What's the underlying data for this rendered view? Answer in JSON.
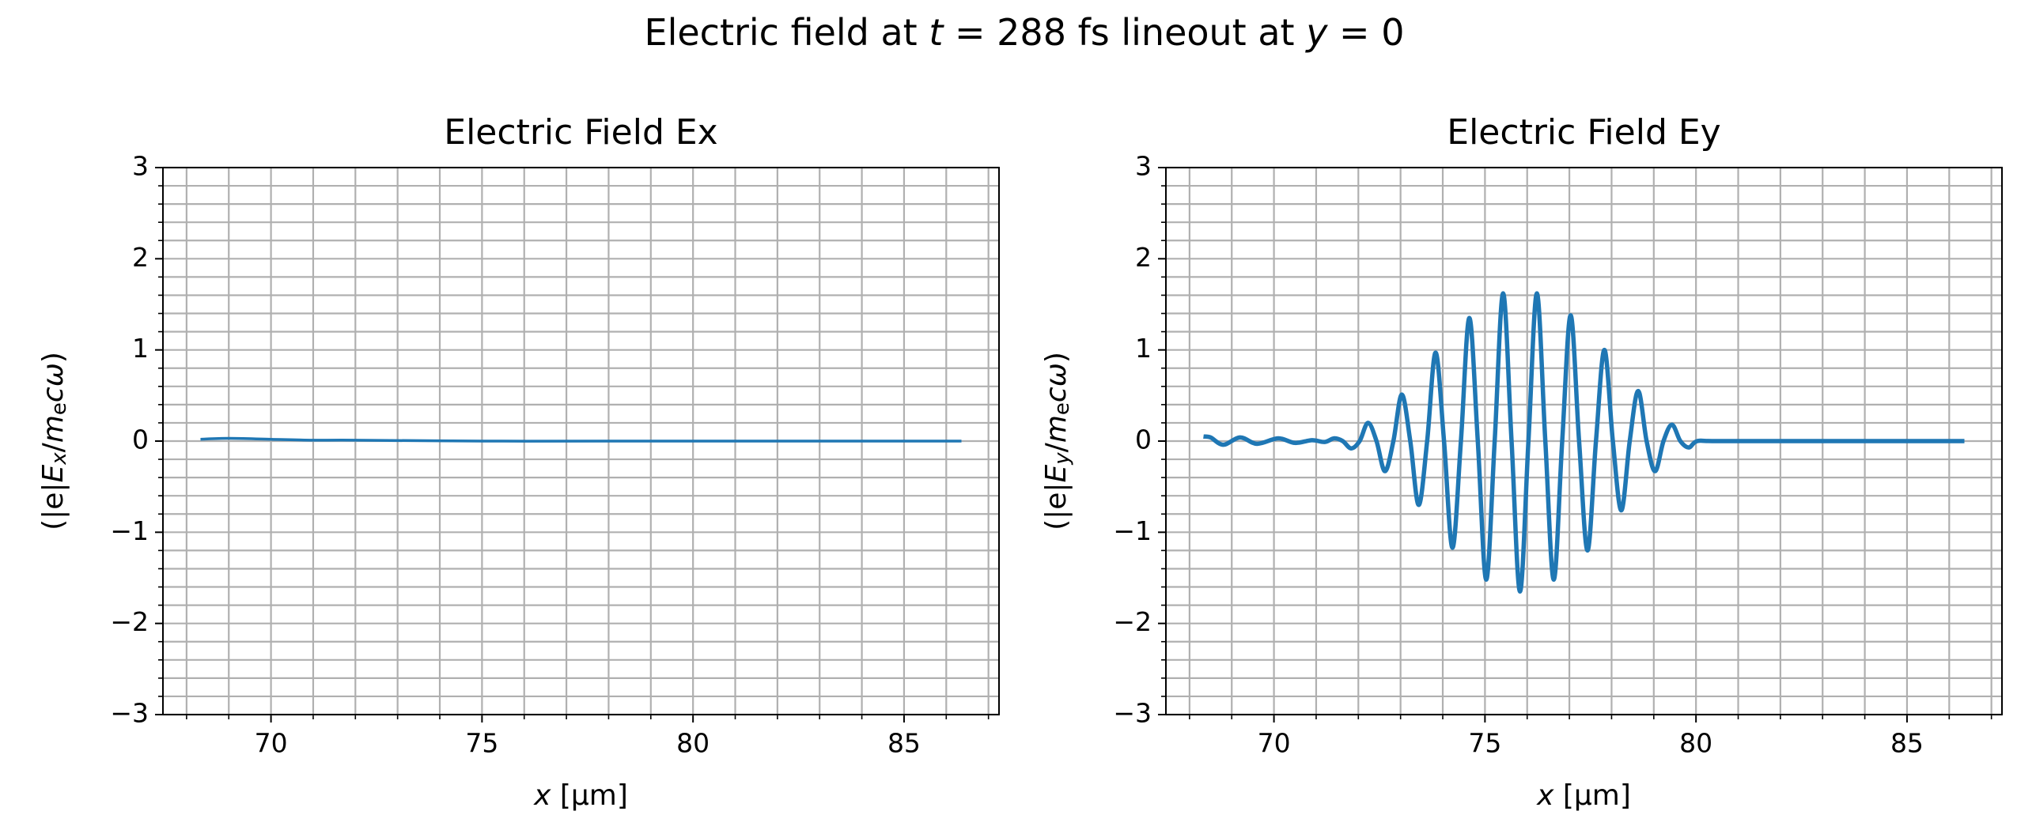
{
  "title": [
    "Electric field at ",
    "t",
    " = 288 fs lineout at ",
    "y",
    " = 0"
  ],
  "chart_data": [
    {
      "type": "line",
      "title": "Electric Field Ex",
      "xlabel": [
        "x",
        " [µm]"
      ],
      "ylabel": [
        "(|e|",
        "E",
        "x",
        "/",
        "m",
        "e",
        "cω",
        ")"
      ],
      "xlim": [
        67.44,
        87.25
      ],
      "ylim": [
        -3,
        3
      ],
      "xticks": [
        70,
        75,
        80,
        85
      ],
      "yticks": [
        {
          "value": -3,
          "label": "−3"
        },
        {
          "value": -2,
          "label": "−2"
        },
        {
          "value": -1,
          "label": "−1"
        },
        0,
        1,
        2,
        3
      ],
      "xminorticks": [
        68,
        69,
        71,
        72,
        73,
        74,
        76,
        77,
        78,
        79,
        81,
        82,
        83,
        84,
        86,
        87
      ],
      "yminorticks": [
        -2.8,
        -2.6,
        -2.4,
        -2.2,
        -1.8,
        -1.6,
        -1.4,
        -1.2,
        -0.8,
        -0.6,
        -0.4,
        -0.2,
        0.2,
        0.4,
        0.6,
        0.8,
        1.2,
        1.4,
        1.6,
        1.8,
        2.2,
        2.4,
        2.6,
        2.8
      ],
      "grid": true,
      "series": [
        {
          "color": "#1f77b4",
          "x": [
            68.33,
            69.0,
            70.0,
            71.0,
            72.0,
            75.0,
            78.0,
            80.0,
            83.0,
            86.36
          ],
          "values": [
            0.02,
            0.03,
            0.02,
            0.01,
            0.01,
            0.0,
            0.0,
            0.0,
            0.0,
            0.0
          ]
        }
      ]
    },
    {
      "type": "line",
      "title": "Electric Field Ey",
      "xlabel": [
        "x",
        " [µm]"
      ],
      "ylabel": [
        "(|e|",
        "E",
        "y",
        "/",
        "m",
        "e",
        "cω",
        ")"
      ],
      "xlim": [
        67.44,
        87.25
      ],
      "ylim": [
        -3,
        3
      ],
      "xticks": [
        70,
        75,
        80,
        85
      ],
      "yticks": [
        {
          "value": -3,
          "label": "−3"
        },
        {
          "value": -2,
          "label": "−2"
        },
        {
          "value": -1,
          "label": "−1"
        },
        0,
        1,
        2,
        3
      ],
      "xminorticks": [
        68,
        69,
        71,
        72,
        73,
        74,
        76,
        77,
        78,
        79,
        81,
        82,
        83,
        84,
        86,
        87
      ],
      "yminorticks": [
        -2.8,
        -2.6,
        -2.4,
        -2.2,
        -1.8,
        -1.6,
        -1.4,
        -1.2,
        -0.8,
        -0.6,
        -0.4,
        -0.2,
        0.2,
        0.4,
        0.6,
        0.8,
        1.2,
        1.4,
        1.6,
        1.8,
        2.2,
        2.4,
        2.6,
        2.8
      ],
      "grid": true,
      "series": [
        {
          "color": "#1f77b4",
          "x": [
            68.33,
            68.5,
            68.8,
            69.2,
            69.6,
            70.1,
            70.5,
            70.9,
            71.2,
            71.43,
            71.63,
            71.83,
            72.03,
            72.23,
            72.43,
            72.63,
            72.83,
            73.03,
            73.23,
            73.43,
            73.63,
            73.83,
            74.03,
            74.23,
            74.43,
            74.63,
            74.83,
            75.03,
            75.23,
            75.43,
            75.63,
            75.83,
            76.03,
            76.23,
            76.43,
            76.63,
            76.83,
            77.03,
            77.23,
            77.43,
            77.63,
            77.83,
            78.03,
            78.23,
            78.43,
            78.63,
            78.83,
            79.03,
            79.23,
            79.43,
            79.63,
            79.83,
            80.03,
            80.5,
            83.0,
            86.36
          ],
          "values": [
            0.05,
            0.04,
            -0.04,
            0.04,
            -0.03,
            0.03,
            -0.02,
            0.01,
            -0.01,
            0.03,
            0,
            -0.08,
            0,
            0.2,
            0,
            -0.33,
            0,
            0.51,
            0,
            -0.7,
            0,
            0.97,
            0,
            -1.17,
            0,
            1.35,
            0,
            -1.52,
            0,
            1.62,
            0,
            -1.65,
            0,
            1.62,
            0,
            -1.52,
            0,
            1.38,
            0,
            -1.2,
            0,
            1.0,
            0,
            -0.76,
            0,
            0.55,
            0,
            -0.33,
            0,
            0.18,
            0,
            -0.07,
            0,
            0,
            0,
            0
          ]
        }
      ]
    }
  ]
}
